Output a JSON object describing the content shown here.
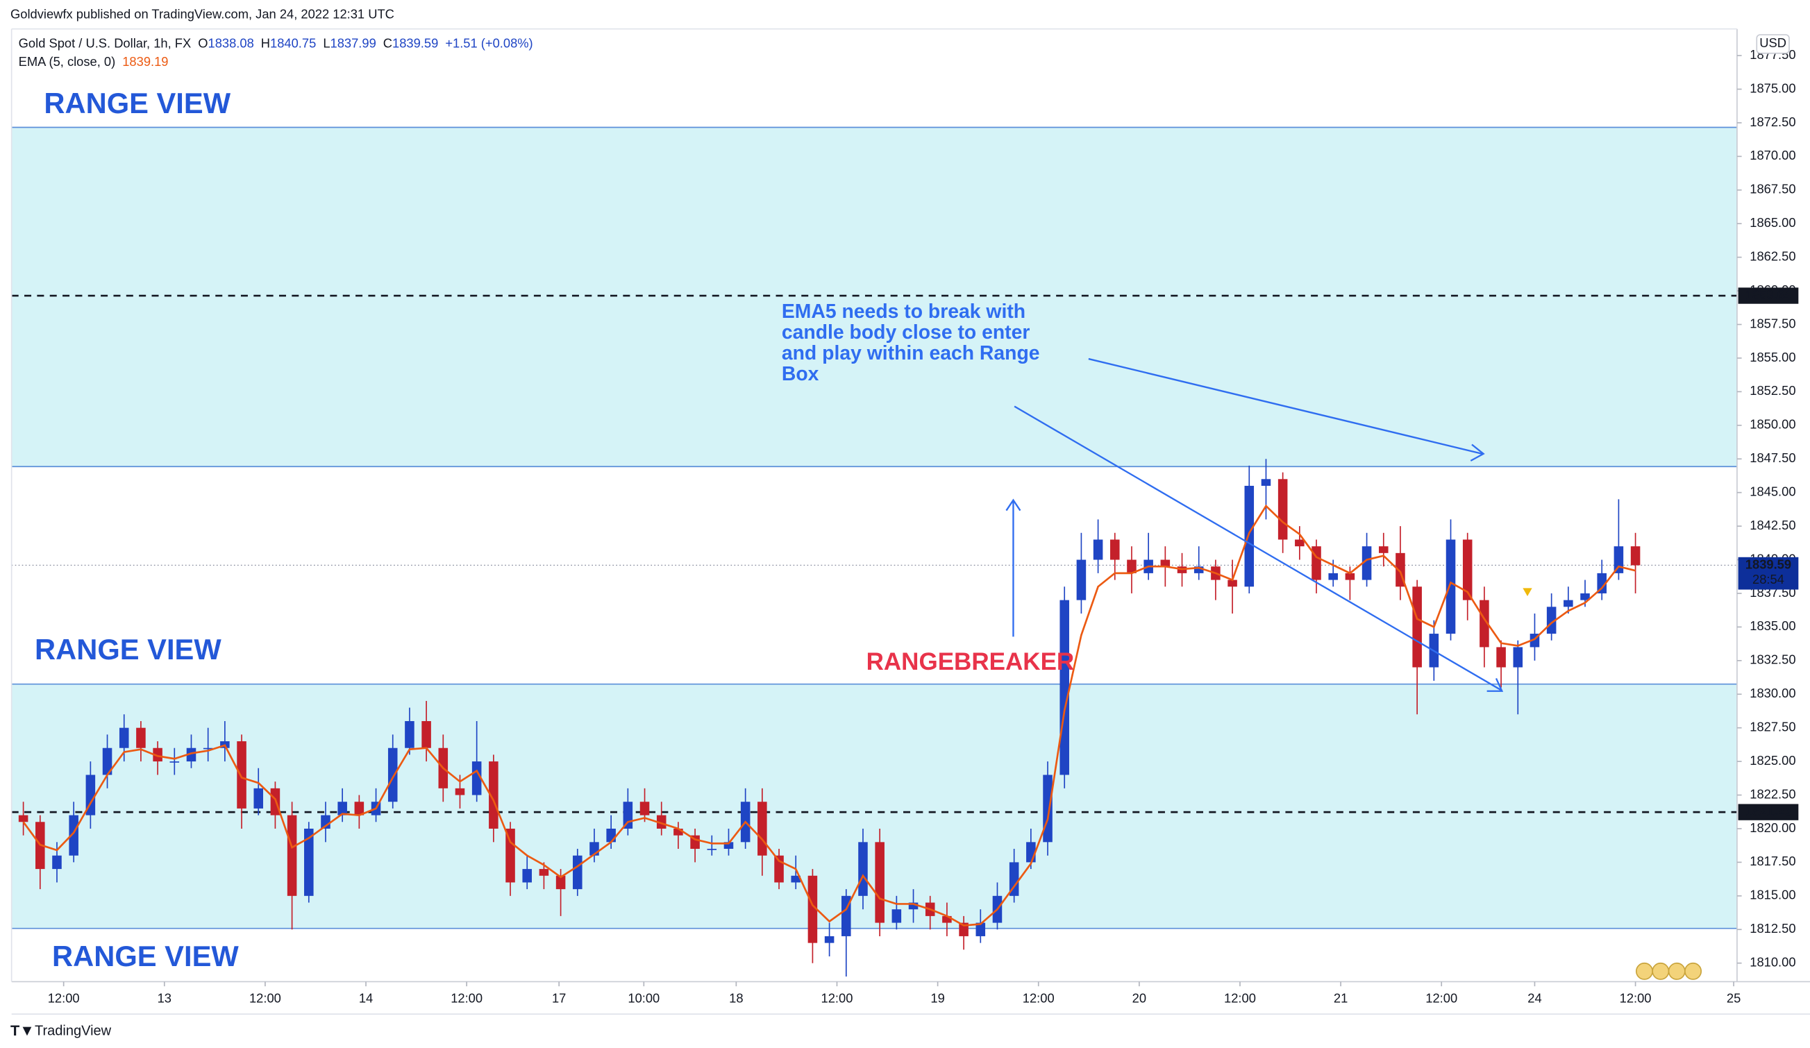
{
  "chart_data": {
    "type": "candlestick",
    "publisher": "Goldviewfx published on TradingView.com, Jan 24, 2022 12:31 UTC",
    "symbol": "Gold Spot / U.S. Dollar, 1h, FX",
    "ohlc": [
      {
        "label": "O",
        "value": 1838.08
      },
      {
        "label": "H",
        "value": 1840.75
      },
      {
        "label": "L",
        "value": 1837.99
      },
      {
        "label": "C",
        "value": 1839.59
      }
    ],
    "change": "+1.51 (+0.08%)",
    "currency": "USD",
    "brand": "TradingView",
    "colors": {
      "up": "#1f45c4",
      "down": "#c4202a",
      "zone": "#d5f3f7",
      "zone_edge": "#5b8fd9",
      "level": "#131722",
      "last": "#0d2f9a"
    },
    "x": [
      0,
      2,
      4,
      6,
      8,
      10,
      12,
      14,
      16,
      18,
      20,
      22,
      24,
      26,
      28,
      30,
      32,
      34,
      36,
      38,
      40,
      42,
      44,
      46,
      48,
      50,
      52,
      54,
      56,
      58,
      60,
      62,
      64,
      66,
      68,
      70,
      72,
      74,
      76,
      78,
      80,
      82,
      84,
      86,
      88,
      90,
      92,
      94,
      96,
      98,
      100,
      102,
      104,
      106,
      108,
      110,
      112,
      114,
      116,
      118,
      120,
      122,
      124,
      126,
      128,
      130,
      132,
      134,
      136,
      138,
      140,
      142,
      144,
      146,
      148,
      150,
      152,
      154,
      156,
      158,
      160,
      162,
      164,
      166,
      168,
      170,
      172,
      174,
      176,
      178,
      180,
      182,
      184,
      186,
      188,
      190,
      192
    ],
    "open": [
      1821,
      1820.5,
      1817,
      1818,
      1821,
      1824,
      1826,
      1827.5,
      1826,
      1825,
      1825,
      1826,
      1826,
      1826.5,
      1821.5,
      1823,
      1821,
      1815,
      1820,
      1821,
      1822,
      1821,
      1822,
      1826,
      1828,
      1826,
      1823,
      1822.5,
      1825,
      1820,
      1816,
      1817,
      1816.5,
      1815.5,
      1818,
      1819,
      1820,
      1822,
      1821,
      1820,
      1819.5,
      1818.5,
      1818.5,
      1819,
      1822,
      1818,
      1816,
      1816.5,
      1811.5,
      1812,
      1815,
      1819,
      1813,
      1814,
      1814.5,
      1813.5,
      1813,
      1812,
      1813,
      1815,
      1817.5,
      1819,
      1824,
      1837,
      1840,
      1841.5,
      1840,
      1839,
      1840,
      1839.5,
      1839,
      1839.5,
      1838.5,
      1838,
      1845.5,
      1846,
      1841.5,
      1841,
      1838.5,
      1839,
      1838.5,
      1841,
      1840.5,
      1838,
      1832,
      1834.5,
      1841.5,
      1837,
      1833.5,
      1832,
      1833.5,
      1834.5,
      1836.5,
      1837,
      1837.5,
      1839,
      1841
    ],
    "high": [
      1822,
      1821,
      1819,
      1822,
      1825,
      1827,
      1828.5,
      1828,
      1826.5,
      1826,
      1827,
      1827.5,
      1828,
      1827,
      1824.5,
      1823.5,
      1822,
      1820.5,
      1822,
      1823,
      1822.5,
      1823,
      1827,
      1829,
      1829.5,
      1827,
      1824,
      1828,
      1825.5,
      1820.5,
      1818,
      1817.5,
      1817,
      1818.5,
      1820,
      1821,
      1823,
      1823,
      1822,
      1820.5,
      1820,
      1819.5,
      1820,
      1823,
      1823,
      1818.5,
      1818,
      1817,
      1813,
      1815.5,
      1820,
      1820,
      1815,
      1815.5,
      1815,
      1814.5,
      1813.5,
      1814,
      1816,
      1818.5,
      1820,
      1825,
      1838,
      1842,
      1843,
      1842,
      1841,
      1842,
      1841,
      1840.5,
      1841,
      1840,
      1840,
      1847,
      1847.5,
      1846.5,
      1842.5,
      1841.5,
      1840,
      1839.5,
      1842,
      1842,
      1842.5,
      1838.5,
      1835.5,
      1843,
      1842,
      1838,
      1834,
      1834,
      1836,
      1837.5,
      1838,
      1838.5,
      1840,
      1844.5,
      1842
    ],
    "low": [
      1819.5,
      1815.5,
      1816,
      1817.5,
      1820,
      1823,
      1825,
      1825,
      1824,
      1824,
      1824.5,
      1825,
      1825,
      1820,
      1821,
      1820,
      1812.5,
      1814.5,
      1819,
      1820.5,
      1820,
      1820.5,
      1821.5,
      1825.5,
      1825,
      1822,
      1821.5,
      1822,
      1819,
      1815,
      1815.5,
      1815.5,
      1813.5,
      1815,
      1817.5,
      1818.5,
      1819.5,
      1820.5,
      1819.5,
      1818.5,
      1817.5,
      1818,
      1818,
      1818.5,
      1816.5,
      1815.5,
      1815.5,
      1810,
      1810.5,
      1809,
      1814,
      1812,
      1812.5,
      1813,
      1812.5,
      1812,
      1811,
      1811.5,
      1812.5,
      1814.5,
      1817,
      1818,
      1823,
      1836,
      1839,
      1838.5,
      1837.5,
      1838.5,
      1838,
      1838,
      1838.5,
      1837,
      1836,
      1837.5,
      1843,
      1840.5,
      1840,
      1837.5,
      1838,
      1837,
      1838,
      1839.5,
      1837,
      1828.5,
      1831,
      1834,
      1835.5,
      1832,
      1830.5,
      1828.5,
      1832.5,
      1834,
      1836,
      1836.5,
      1837,
      1838.5,
      1837.5
    ],
    "close": [
      1820.5,
      1817,
      1818,
      1821,
      1824,
      1826,
      1827.5,
      1826,
      1825,
      1825,
      1826,
      1826,
      1826.5,
      1821.5,
      1823,
      1821,
      1815,
      1820,
      1821,
      1822,
      1821,
      1822,
      1826,
      1828,
      1826,
      1823,
      1822.5,
      1825,
      1820,
      1816,
      1817,
      1816.5,
      1815.5,
      1818,
      1819,
      1820,
      1822,
      1821,
      1820,
      1819.5,
      1818.5,
      1818.5,
      1819,
      1822,
      1818,
      1816,
      1816.5,
      1811.5,
      1812,
      1815,
      1819,
      1813,
      1814,
      1814.5,
      1813.5,
      1813,
      1812,
      1813,
      1815,
      1817.5,
      1819,
      1824,
      1837,
      1840,
      1841.5,
      1840,
      1839,
      1840,
      1839.5,
      1839,
      1839.5,
      1838.5,
      1838,
      1845.5,
      1846,
      1841.5,
      1841,
      1838.5,
      1839,
      1838.5,
      1841,
      1840.5,
      1838,
      1832,
      1834.5,
      1841.5,
      1837,
      1833.5,
      1832,
      1833.5,
      1834.5,
      1836.5,
      1837,
      1837.5,
      1839,
      1841,
      1839.59
    ],
    "ema": {
      "name": "EMA (5, close, 0)",
      "last": 1839.19,
      "color": "#ec5a12",
      "values": [
        1820.5,
        1818.8,
        1818.4,
        1819.7,
        1821.9,
        1824,
        1825.7,
        1825.9,
        1825.4,
        1825.2,
        1825.6,
        1825.8,
        1826.2,
        1823.8,
        1823.4,
        1822.2,
        1818.6,
        1819.3,
        1820.2,
        1821.1,
        1821,
        1821.5,
        1823.8,
        1825.9,
        1826,
        1824.5,
        1823.5,
        1824.3,
        1822.1,
        1819,
        1818,
        1817.3,
        1816.4,
        1817.2,
        1818.1,
        1819,
        1820.5,
        1820.8,
        1820.4,
        1820,
        1819.2,
        1818.9,
        1818.9,
        1820.5,
        1819.2,
        1817.6,
        1817,
        1814.3,
        1813.1,
        1814,
        1816.5,
        1814.8,
        1814.4,
        1814.4,
        1814,
        1813.5,
        1812.8,
        1812.9,
        1814,
        1815.7,
        1817.4,
        1820.7,
        1828.8,
        1834.4,
        1838,
        1839,
        1839,
        1839.5,
        1839.5,
        1839.3,
        1839.4,
        1839,
        1838.5,
        1842,
        1844,
        1842.8,
        1841.9,
        1840.2,
        1839.6,
        1839,
        1840,
        1840.3,
        1839.1,
        1835.6,
        1835,
        1838.3,
        1837.6,
        1835.6,
        1833.8,
        1833.6,
        1834.1,
        1835.3,
        1836.2,
        1836.8,
        1837.9,
        1839.5,
        1839.19
      ]
    },
    "xlim": [
      -1.4,
      204.1
    ],
    "xticks": [
      {
        "value": 4.8,
        "label": "12:00"
      },
      {
        "value": 16.8,
        "label": "13"
      },
      {
        "value": 28.8,
        "label": "12:00"
      },
      {
        "value": 40.8,
        "label": "14"
      },
      {
        "value": 52.8,
        "label": "12:00"
      },
      {
        "value": 63.8,
        "label": "17"
      },
      {
        "value": 73.9,
        "label": "10:00"
      },
      {
        "value": 84.9,
        "label": "18"
      },
      {
        "value": 96.9,
        "label": "12:00"
      },
      {
        "value": 108.9,
        "label": "19"
      },
      {
        "value": 120.9,
        "label": "12:00"
      },
      {
        "value": 132.9,
        "label": "20"
      },
      {
        "value": 144.9,
        "label": "12:00"
      },
      {
        "value": 156.9,
        "label": "21"
      },
      {
        "value": 168.9,
        "label": "12:00"
      },
      {
        "value": 180.0,
        "label": "24"
      },
      {
        "value": 192.0,
        "label": "12:00"
      },
      {
        "value": 203.7,
        "label": "25"
      }
    ],
    "ylim": [
      1808.62,
      1879.48
    ],
    "yticks": [
      {
        "value": 1810,
        "label": "1810.00"
      },
      {
        "value": 1812.5,
        "label": "1812.50"
      },
      {
        "value": 1815,
        "label": "1815.00"
      },
      {
        "value": 1817.5,
        "label": "1817.50"
      },
      {
        "value": 1820,
        "label": "1820.00"
      },
      {
        "value": 1822.5,
        "label": "1822.50"
      },
      {
        "value": 1825,
        "label": "1825.00"
      },
      {
        "value": 1827.5,
        "label": "1827.50"
      },
      {
        "value": 1830,
        "label": "1830.00"
      },
      {
        "value": 1832.5,
        "label": "1832.50"
      },
      {
        "value": 1835,
        "label": "1835.00"
      },
      {
        "value": 1837.5,
        "label": "1837.50"
      },
      {
        "value": 1840,
        "label": "1840.00"
      },
      {
        "value": 1842.5,
        "label": "1842.50"
      },
      {
        "value": 1845,
        "label": "1845.00"
      },
      {
        "value": 1847.5,
        "label": "1847.50"
      },
      {
        "value": 1850,
        "label": "1850.00"
      },
      {
        "value": 1852.5,
        "label": "1852.50"
      },
      {
        "value": 1855,
        "label": "1855.00"
      },
      {
        "value": 1857.5,
        "label": "1857.50"
      },
      {
        "value": 1860,
        "label": "1860.00"
      },
      {
        "value": 1862.5,
        "label": "1862.50"
      },
      {
        "value": 1865,
        "label": "1865.00"
      },
      {
        "value": 1867.5,
        "label": "1867.50"
      },
      {
        "value": 1870,
        "label": "1870.00"
      },
      {
        "value": 1872.5,
        "label": "1872.50"
      },
      {
        "value": 1875,
        "label": "1875.00"
      },
      {
        "value": 1877.5,
        "label": "1877.50"
      }
    ],
    "zones": [
      {
        "from": 1812.58,
        "to": 1830.75
      },
      {
        "from": 1846.93,
        "to": 1872.16
      }
    ],
    "levels": [
      1859.64,
      1821.23
    ],
    "last_price": {
      "value": 1839.59,
      "countdown": "28:54"
    },
    "annotations": {
      "range_view": [
        "RANGE VIEW",
        "RANGE VIEW",
        "RANGE VIEW"
      ],
      "breaker": "RANGEBREAKER",
      "note": [
        "EMA5 needs to break with",
        "candle body close to enter",
        "and play within each Range",
        "Box"
      ]
    }
  }
}
